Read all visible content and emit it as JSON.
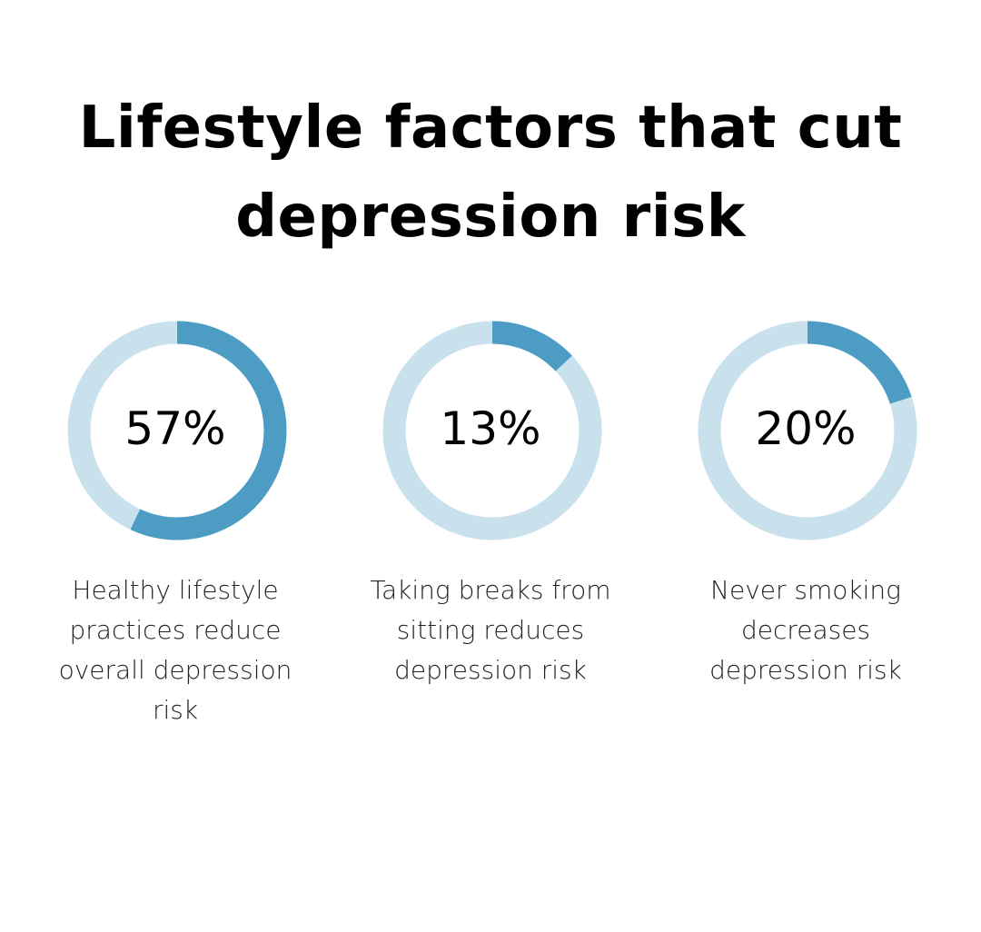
{
  "title": "Lifestyle factors that cut depression risk",
  "colors": {
    "track": "#c9e1ec",
    "fill": "#4d9cc3"
  },
  "chart_data": {
    "type": "pie",
    "title": "Lifestyle factors that cut depression risk",
    "items": [
      {
        "value": 57,
        "value_label": "57%",
        "label": "Healthy lifestyle practices reduce overall depression risk"
      },
      {
        "value": 13,
        "value_label": "13%",
        "label": "Taking breaks from sitting reduces depression risk"
      },
      {
        "value": 20,
        "value_label": "20%",
        "label": "Never smoking decreases depression risk"
      }
    ]
  }
}
